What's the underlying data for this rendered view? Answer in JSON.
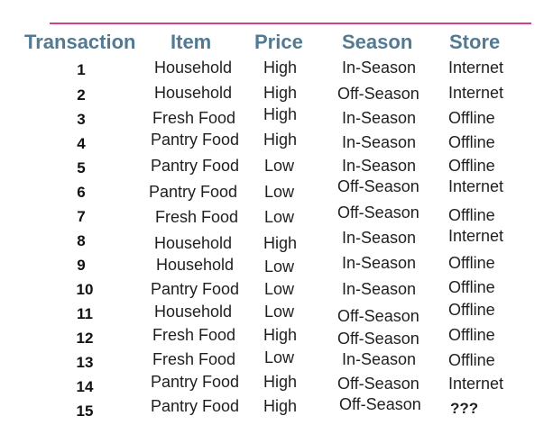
{
  "headers": {
    "transaction": "Transaction",
    "item": "Item",
    "price": "Price",
    "season": "Season",
    "store": "Store"
  },
  "rows": [
    {
      "transaction": "1",
      "item": "Household",
      "price": "High",
      "season": "In-Season",
      "store": "Internet"
    },
    {
      "transaction": "2",
      "item": "Household",
      "price": "High",
      "season": "Off-Season",
      "store": "Internet"
    },
    {
      "transaction": "3",
      "item": "Fresh Food",
      "price": "High",
      "season": "In-Season",
      "store": "Offline"
    },
    {
      "transaction": "4",
      "item": "Pantry Food",
      "price": "High",
      "season": "In-Season",
      "store": "Offline"
    },
    {
      "transaction": "5",
      "item": "Pantry Food",
      "price": "Low",
      "season": "In-Season",
      "store": "Offline"
    },
    {
      "transaction": "6",
      "item": "Pantry Food",
      "price": "Low",
      "season": "Off-Season",
      "store": "Internet"
    },
    {
      "transaction": "7",
      "item": "Fresh Food",
      "price": "Low",
      "season": "Off-Season",
      "store": "Offline"
    },
    {
      "transaction": "8",
      "item": "Household",
      "price": "High",
      "season": "In-Season",
      "store": "Internet"
    },
    {
      "transaction": "9",
      "item": "Household",
      "price": "Low",
      "season": "In-Season",
      "store": "Offline"
    },
    {
      "transaction": "10",
      "item": "Pantry Food",
      "price": "Low",
      "season": "In-Season",
      "store": "Offline"
    },
    {
      "transaction": "11",
      "item": "Household",
      "price": "Low",
      "season": "Off-Season",
      "store": "Offline"
    },
    {
      "transaction": "12",
      "item": "Fresh Food",
      "price": "High",
      "season": "Off-Season",
      "store": "Offline"
    },
    {
      "transaction": "13",
      "item": "Fresh Food",
      "price": "Low",
      "season": "In-Season",
      "store": "Offline"
    },
    {
      "transaction": "14",
      "item": "Pantry Food",
      "price": "High",
      "season": "Off-Season",
      "store": "Internet"
    },
    {
      "transaction": "15",
      "item": "Pantry Food",
      "price": "High",
      "season": "Off-Season",
      "store": "???"
    }
  ],
  "colors": {
    "header": "#527a92",
    "rule": "#d63f86"
  }
}
